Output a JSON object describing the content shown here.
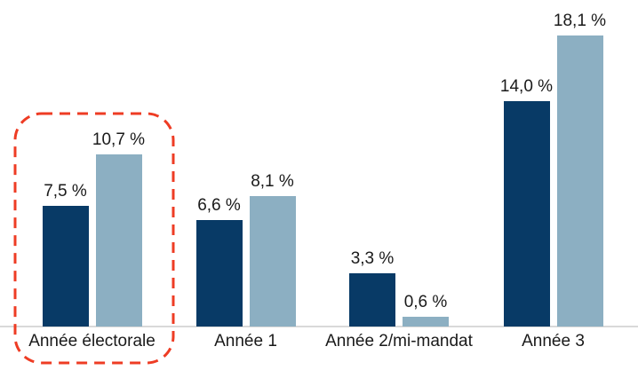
{
  "chart_data": {
    "type": "bar",
    "categories": [
      "Année électorale",
      "Année 1",
      "Année 2/mi-mandat",
      "Année 3"
    ],
    "series": [
      {
        "name": "dark-navy",
        "color": "#083a66",
        "values": [
          7.5,
          6.6,
          3.3,
          14.0
        ],
        "labels": [
          "7,5 %",
          "6,6 %",
          "3,3 %",
          "14,0 %"
        ]
      },
      {
        "name": "light-blue",
        "color": "#8cafc2",
        "values": [
          10.7,
          8.1,
          0.6,
          18.1
        ],
        "labels": [
          "10,7 %",
          "8,1 %",
          "0,6 %",
          "18,1 %"
        ]
      }
    ],
    "title": "",
    "xlabel": "",
    "ylabel": "",
    "ylim": [
      0,
      20
    ],
    "grid": false,
    "legend": "none",
    "value_label_format": "french decimal comma, space before %",
    "axis_line_color": "#d9d9d9",
    "text_color": "#1a1a1a",
    "annotation": {
      "type": "dashed-rounded-outline",
      "target_category": "Année électorale",
      "color": "#ee3c24"
    }
  }
}
